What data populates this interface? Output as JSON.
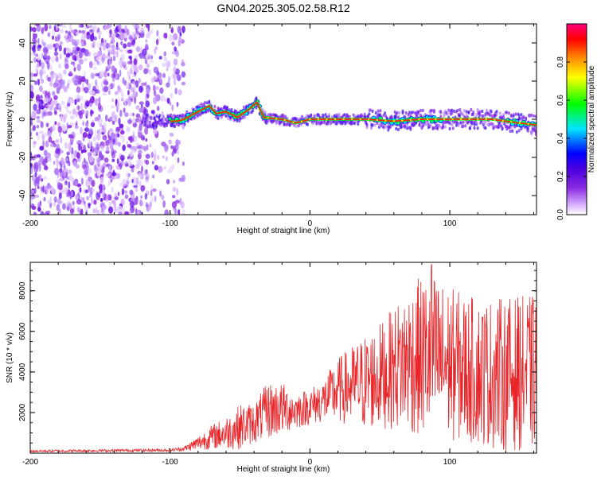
{
  "title": "GN04.2025.305.02.58.R12",
  "colors": {
    "snr_line": "#e8262a",
    "frame": "#000000",
    "colorbar_stops": [
      "#ffffff",
      "#d9b3ff",
      "#8a2be2",
      "#4b00e0",
      "#0000ff",
      "#00e5ff",
      "#00ff00",
      "#ffff00",
      "#ff8c00",
      "#ff0000",
      "#ff0080"
    ]
  },
  "chart_data": [
    {
      "type": "heatmap",
      "xlabel": "Height of straight line (km)",
      "ylabel": "Frequency (Hz)",
      "xlim": [
        -200,
        162
      ],
      "ylim": [
        -50,
        50
      ],
      "xticks": [
        -200,
        -100,
        0,
        100
      ],
      "xtick_labels": [
        "-200",
        "-100",
        "0",
        "100"
      ],
      "yticks": [
        -40,
        -20,
        0,
        20,
        40
      ],
      "ytick_labels": [
        "-40",
        "-20",
        "0",
        "20",
        "40"
      ],
      "noise_region_x": [
        -200,
        -90
      ],
      "ridge": [
        {
          "x": -120,
          "y": -1
        },
        {
          "x": -95,
          "y": -1
        },
        {
          "x": -90,
          "y": 0
        },
        {
          "x": -80,
          "y": 4
        },
        {
          "x": -72,
          "y": 7
        },
        {
          "x": -67,
          "y": 3
        },
        {
          "x": -60,
          "y": 4
        },
        {
          "x": -52,
          "y": 1
        },
        {
          "x": -44,
          "y": 5
        },
        {
          "x": -38,
          "y": 9
        },
        {
          "x": -33,
          "y": 1
        },
        {
          "x": -20,
          "y": 0
        },
        {
          "x": -10,
          "y": -2
        },
        {
          "x": 0,
          "y": 0
        },
        {
          "x": 40,
          "y": 0
        },
        {
          "x": 60,
          "y": -1
        },
        {
          "x": 80,
          "y": 0
        },
        {
          "x": 100,
          "y": 0
        },
        {
          "x": 130,
          "y": 0
        },
        {
          "x": 150,
          "y": -2
        },
        {
          "x": 162,
          "y": -3
        }
      ],
      "colorbar": {
        "label": "Normalized spectral amplitude",
        "range": [
          0,
          1
        ],
        "ticks": [
          0.0,
          0.2,
          0.4,
          0.6,
          0.8
        ],
        "tick_labels": [
          "0.0",
          "0.2",
          "0.4",
          "0.6",
          "0.8"
        ]
      }
    },
    {
      "type": "line",
      "xlabel": "Height of straight line (km)",
      "ylabel": "SNR (10 * v/v)",
      "xlim": [
        -200,
        162
      ],
      "ylim": [
        0,
        9400
      ],
      "xticks": [
        -200,
        -100,
        0,
        100
      ],
      "xtick_labels": [
        "-200",
        "-100",
        "0",
        "100"
      ],
      "yticks": [
        2000,
        4000,
        6000,
        8000
      ],
      "ytick_labels": [
        "2000",
        "4000",
        "6000",
        "8000"
      ],
      "series": [
        {
          "name": "SNR",
          "envelope": [
            {
              "x": -200,
              "mean": 100,
              "spread": 60
            },
            {
              "x": -100,
              "mean": 150,
              "spread": 80
            },
            {
              "x": -90,
              "mean": 220,
              "spread": 120
            },
            {
              "x": -80,
              "mean": 500,
              "spread": 350
            },
            {
              "x": -70,
              "mean": 800,
              "spread": 600
            },
            {
              "x": -60,
              "mean": 1000,
              "spread": 800
            },
            {
              "x": -50,
              "mean": 1300,
              "spread": 1100
            },
            {
              "x": -40,
              "mean": 1500,
              "spread": 1000
            },
            {
              "x": -30,
              "mean": 2100,
              "spread": 1400
            },
            {
              "x": -20,
              "mean": 2200,
              "spread": 1300
            },
            {
              "x": -10,
              "mean": 2100,
              "spread": 900
            },
            {
              "x": 0,
              "mean": 2300,
              "spread": 900
            },
            {
              "x": 10,
              "mean": 2600,
              "spread": 1100
            },
            {
              "x": 20,
              "mean": 3100,
              "spread": 1600
            },
            {
              "x": 30,
              "mean": 3300,
              "spread": 2000
            },
            {
              "x": 40,
              "mean": 3500,
              "spread": 2400
            },
            {
              "x": 50,
              "mean": 3800,
              "spread": 2600
            },
            {
              "x": 60,
              "mean": 4200,
              "spread": 3000
            },
            {
              "x": 70,
              "mean": 4600,
              "spread": 3600
            },
            {
              "x": 85,
              "mean": 4800,
              "spread": 4200
            },
            {
              "x": 100,
              "mean": 4400,
              "spread": 3800
            },
            {
              "x": 120,
              "mean": 4000,
              "spread": 3600
            },
            {
              "x": 140,
              "mean": 3900,
              "spread": 3800
            },
            {
              "x": 162,
              "mean": 4000,
              "spread": 3800
            }
          ],
          "peak": {
            "x": 87,
            "y": 9300
          }
        }
      ]
    }
  ]
}
